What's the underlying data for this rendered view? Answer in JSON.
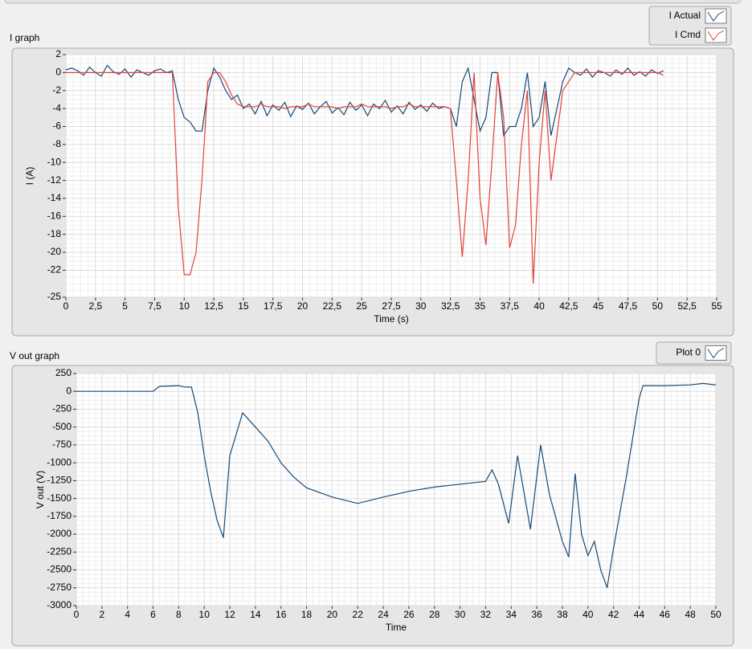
{
  "chart_data": [
    {
      "type": "line",
      "title": "I graph",
      "x_label": "Time (s)",
      "y_label": "I (A)",
      "legend": "top-right",
      "grid": true,
      "x": [
        0,
        0.5,
        1,
        1.5,
        2,
        2.5,
        3,
        3.5,
        4,
        4.5,
        5,
        5.5,
        6,
        6.5,
        7,
        7.5,
        8,
        8.5,
        9,
        9.5,
        10,
        10.5,
        11,
        11.5,
        12,
        12.5,
        13,
        13.5,
        14,
        14.5,
        15,
        15.5,
        16,
        16.5,
        17,
        17.5,
        18,
        18.5,
        19,
        19.5,
        20,
        20.5,
        21,
        21.5,
        22,
        22.5,
        23,
        23.5,
        24,
        24.5,
        25,
        25.5,
        26,
        26.5,
        27,
        27.5,
        28,
        28.5,
        29,
        29.5,
        30,
        30.5,
        31,
        31.5,
        32,
        32.5,
        33,
        33.5,
        34,
        34.5,
        35,
        35.5,
        36,
        36.5,
        37,
        37.5,
        38,
        38.5,
        39,
        39.5,
        40,
        40.5,
        41,
        41.5,
        42,
        42.5,
        43,
        43.5,
        44,
        44.5,
        45,
        45.5,
        46,
        46.5,
        47,
        47.5,
        48,
        48.5,
        49,
        49.5,
        50,
        50.5
      ],
      "series": [
        {
          "name": "I Actual",
          "color": "#164a78",
          "values": [
            0.3,
            0.5,
            0.2,
            -0.3,
            0.6,
            0,
            -0.4,
            0.8,
            0.1,
            -0.2,
            0.4,
            -0.5,
            0.3,
            0,
            -0.3,
            0.2,
            0.4,
            0,
            0.2,
            -3,
            -5,
            -5.5,
            -6.5,
            -6.5,
            -2,
            0.5,
            -0.5,
            -2,
            -3,
            -2.5,
            -4,
            -3.5,
            -4.6,
            -3.2,
            -4.8,
            -3.6,
            -4.2,
            -3.3,
            -4.9,
            -3.7,
            -4.1,
            -3.4,
            -4.6,
            -3.8,
            -3.2,
            -4.5,
            -3.9,
            -4.7,
            -3.3,
            -4.2,
            -3.6,
            -4.8,
            -3.5,
            -4,
            -3.1,
            -4.4,
            -3.7,
            -4.6,
            -3.3,
            -4.1,
            -3.6,
            -4.3,
            -3.4,
            -4,
            -3.8,
            -4,
            -6,
            -1,
            0.5,
            -3,
            -6.5,
            -5,
            0,
            0,
            -7,
            -6,
            -6,
            -4,
            0,
            -6,
            -5,
            -1,
            -7,
            -4,
            -1,
            0.5,
            0,
            -0.3,
            0.4,
            -0.5,
            0.2,
            0,
            -0.4,
            0.3,
            -0.2,
            0.5,
            -0.3,
            0.1,
            -0.4,
            0.3,
            -0.1,
            0.2
          ]
        },
        {
          "name": "I Cmd",
          "color": "#e5403a",
          "values": [
            0,
            0,
            0,
            0,
            0,
            0,
            0,
            0,
            0,
            0,
            0,
            0,
            0,
            0,
            0,
            0,
            0,
            0,
            0,
            -15,
            -22.5,
            -22.5,
            -20,
            -12,
            -1,
            0,
            0,
            -1,
            -2.5,
            -3.5,
            -3.8,
            -3.8,
            -3.8,
            -3.5,
            -3.8,
            -3.8,
            -3.8,
            -4,
            -3.8,
            -3.8,
            -3.8,
            -3.5,
            -3.8,
            -3.8,
            -3.8,
            -3.8,
            -4,
            -3.8,
            -3.8,
            -3.8,
            -3.5,
            -3.8,
            -3.8,
            -3.8,
            -3.8,
            -4,
            -3.8,
            -3.8,
            -3.5,
            -3.8,
            -3.8,
            -3.8,
            -3.8,
            -3.8,
            -3.8,
            -4,
            -12,
            -20.5,
            -12,
            0,
            -14,
            -19.2,
            -10,
            0,
            -5,
            -19.5,
            -17,
            -8,
            -2,
            -23.5,
            -10,
            -2,
            -12,
            -7,
            -2,
            -1,
            0,
            0,
            0,
            0,
            0,
            0,
            0,
            0,
            0,
            0,
            0,
            0,
            0,
            0,
            0,
            -0.3
          ]
        }
      ],
      "xlim": [
        0,
        55
      ],
      "xticks": [
        0,
        {
          "value": 2.5,
          "label": "2,5"
        },
        5,
        {
          "value": 7.5,
          "label": "7,5"
        },
        10,
        {
          "value": 12.5,
          "label": "12,5"
        },
        15,
        {
          "value": 17.5,
          "label": "17,5"
        },
        20,
        {
          "value": 22.5,
          "label": "22,5"
        },
        25,
        {
          "value": 27.5,
          "label": "27,5"
        },
        30,
        {
          "value": 32.5,
          "label": "32,5"
        },
        35,
        {
          "value": 37.5,
          "label": "37,5"
        },
        40,
        {
          "value": 42.5,
          "label": "42,5"
        },
        45,
        {
          "value": 47.5,
          "label": "47,5"
        },
        50,
        {
          "value": 52.5,
          "label": "52,5"
        },
        55
      ],
      "ylim": [
        -25,
        2
      ],
      "yticks": [
        2,
        0,
        -2,
        -4,
        -6,
        -8,
        -10,
        -12,
        -14,
        -16,
        -18,
        -20,
        -22,
        -25
      ]
    },
    {
      "type": "line",
      "title": "V out graph",
      "x_label": "Time",
      "y_label": "V out (V)",
      "legend": "top-right",
      "grid": true,
      "x": [
        0,
        6,
        6.5,
        8,
        8.5,
        9,
        9.5,
        10,
        10.5,
        11,
        11.5,
        12,
        13,
        13.5,
        14,
        15,
        16,
        17,
        18,
        20,
        22,
        24,
        26,
        28,
        30,
        32,
        32.5,
        33,
        33.8,
        34.5,
        35.5,
        36.3,
        37,
        38,
        38.5,
        39,
        39.5,
        40,
        40.5,
        41,
        41.5,
        42,
        43,
        44,
        44.3,
        46,
        48,
        49,
        50
      ],
      "series": [
        {
          "name": "Plot 0",
          "color": "#164a78",
          "values": [
            0,
            0,
            70,
            80,
            60,
            60,
            -300,
            -900,
            -1400,
            -1800,
            -2050,
            -900,
            -300,
            -400,
            -500,
            -700,
            -1000,
            -1200,
            -1350,
            -1480,
            -1570,
            -1480,
            -1400,
            -1340,
            -1300,
            -1260,
            -1100,
            -1300,
            -1850,
            -900,
            -1930,
            -750,
            -1450,
            -2100,
            -2320,
            -1150,
            -2000,
            -2300,
            -2100,
            -2500,
            -2750,
            -2200,
            -1200,
            -100,
            80,
            80,
            90,
            110,
            90
          ]
        }
      ],
      "xlim": [
        0,
        50
      ],
      "xticks": [
        0,
        2,
        4,
        6,
        8,
        10,
        12,
        14,
        16,
        18,
        20,
        22,
        24,
        26,
        28,
        30,
        32,
        34,
        36,
        38,
        40,
        42,
        44,
        46,
        48,
        50
      ],
      "ylim": [
        -3000,
        250
      ],
      "yticks": [
        250,
        0,
        -250,
        -500,
        -750,
        -1000,
        -1250,
        -1500,
        -1750,
        -2000,
        -2250,
        -2500,
        -2750,
        -3000
      ]
    }
  ]
}
